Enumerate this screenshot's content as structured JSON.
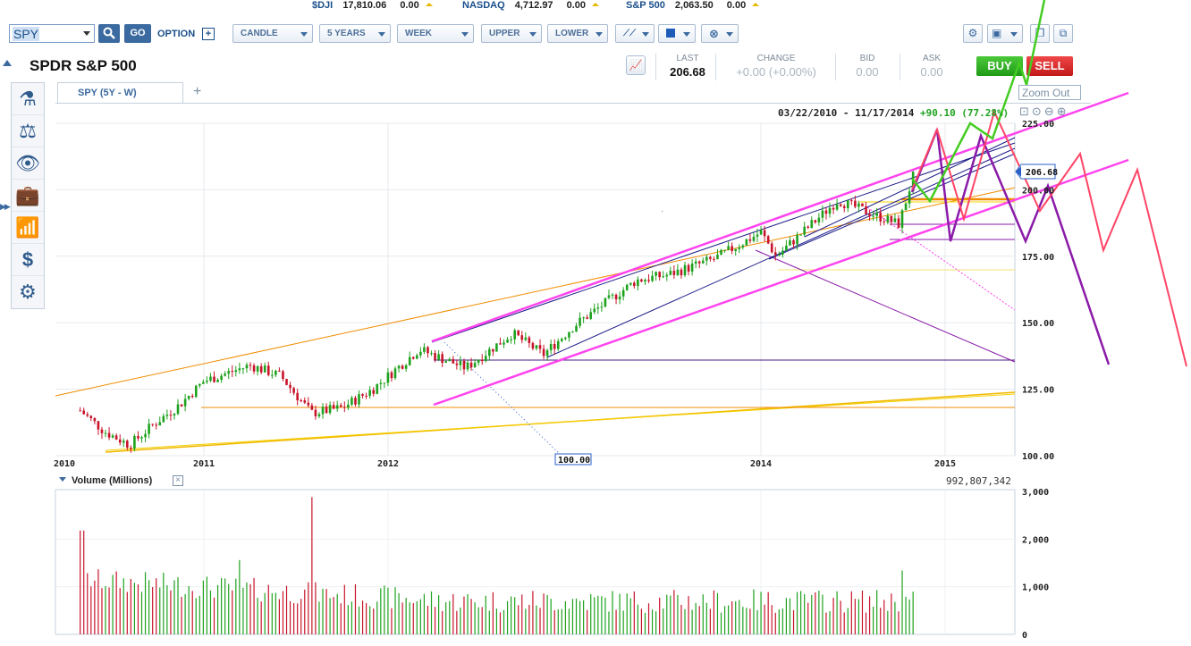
{
  "ticker": [
    {
      "symbol": "$DJI",
      "value": "17,810.06",
      "change": "0.00"
    },
    {
      "symbol": "NASDAQ",
      "value": "4,712.97",
      "change": "0.00"
    },
    {
      "symbol": "S&P 500",
      "value": "2,063.50",
      "change": "0.00"
    }
  ],
  "toolbar": {
    "symbol_value": "SPY",
    "go_label": "GO",
    "option_label": "OPTION",
    "chart_type": "CANDLE",
    "period": "5 YEARS",
    "interval": "WEEK",
    "upper": "UPPER",
    "lower": "LOWER"
  },
  "header": {
    "title": "SPDR S&P 500",
    "last_label": "LAST",
    "last_value": "206.68",
    "change_label": "CHANGE",
    "change_value": "+0.00 (+0.00%)",
    "bid_label": "BID",
    "bid_value": "0.00",
    "ask_label": "ASK",
    "ask_value": "0.00",
    "buy_label": "BUY",
    "sell_label": "SELL"
  },
  "sidebar": {
    "items": [
      "research-icon",
      "scales-icon",
      "eye-icon",
      "briefcase-icon",
      "bar-chart-icon",
      "dollar-icon",
      "gear-icon"
    ]
  },
  "tab": {
    "label": "SPY (5Y - W)",
    "add": "+"
  },
  "zoom": {
    "out_label": "Zoom Out"
  },
  "chart": {
    "date_range": "03/22/2010 - 11/17/2014",
    "change_text": "+90.10 (77.28%)",
    "current_price_label": "206.68",
    "highlight_price": "100.00",
    "volume_label": "Volume (Millions)",
    "volume_total": "992,807,342",
    "colors": {
      "up": "#1ea21e",
      "down": "#c8142a",
      "channel": "#ff44ee",
      "trend_orange": "#f08c00",
      "green_path": "#44cc22",
      "purple_path": "#8a1aa8",
      "red_path": "#ff4466"
    }
  },
  "chart_data": {
    "type": "candlestick",
    "title": "SPY (5Y - W)",
    "x_tick_labels": [
      "2010",
      "2011",
      "2012",
      "2014",
      "2015"
    ],
    "y_tick_labels": [
      "225.00",
      "200.00",
      "175.00",
      "150.00",
      "125.00",
      "100.00"
    ],
    "ylim": [
      100,
      225
    ],
    "price_path": [
      {
        "date": "2010-03",
        "close": 117
      },
      {
        "date": "2010-05",
        "close": 109
      },
      {
        "date": "2010-07",
        "close": 104
      },
      {
        "date": "2010-09",
        "close": 112
      },
      {
        "date": "2010-11",
        "close": 119
      },
      {
        "date": "2011-01",
        "close": 128
      },
      {
        "date": "2011-04",
        "close": 134
      },
      {
        "date": "2011-06",
        "close": 130
      },
      {
        "date": "2011-08",
        "close": 116
      },
      {
        "date": "2011-10",
        "close": 118
      },
      {
        "date": "2011-12",
        "close": 125
      },
      {
        "date": "2012-03",
        "close": 140
      },
      {
        "date": "2012-06",
        "close": 133
      },
      {
        "date": "2012-09",
        "close": 146
      },
      {
        "date": "2012-11",
        "close": 138
      },
      {
        "date": "2013-01",
        "close": 149
      },
      {
        "date": "2013-05",
        "close": 166
      },
      {
        "date": "2013-07",
        "close": 168
      },
      {
        "date": "2013-10",
        "close": 174
      },
      {
        "date": "2014-01",
        "close": 184
      },
      {
        "date": "2014-02",
        "close": 175
      },
      {
        "date": "2014-06",
        "close": 196
      },
      {
        "date": "2014-10",
        "close": 187
      },
      {
        "date": "2014-11",
        "close": 206.68
      }
    ],
    "volume": {
      "ylabel": "Volume (Millions)",
      "y_tick_labels": [
        "3,000",
        "2,000",
        "1,000",
        "0"
      ],
      "ylim": [
        0,
        3000
      ]
    }
  }
}
